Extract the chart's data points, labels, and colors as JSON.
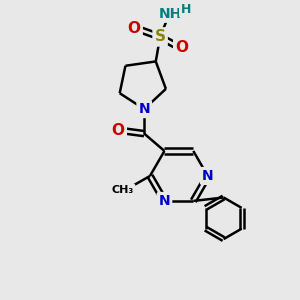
{
  "bg_color": "#e8e8e8",
  "bond_color": "#000000",
  "bond_width": 1.8,
  "atom_colors": {
    "C": "#000000",
    "N": "#0000cc",
    "O": "#cc0000",
    "S": "#888800",
    "H": "#008080"
  },
  "font_size": 10,
  "fig_size": [
    3.0,
    3.0
  ],
  "dpi": 100,
  "xlim": [
    0,
    10
  ],
  "ylim": [
    0,
    10
  ]
}
